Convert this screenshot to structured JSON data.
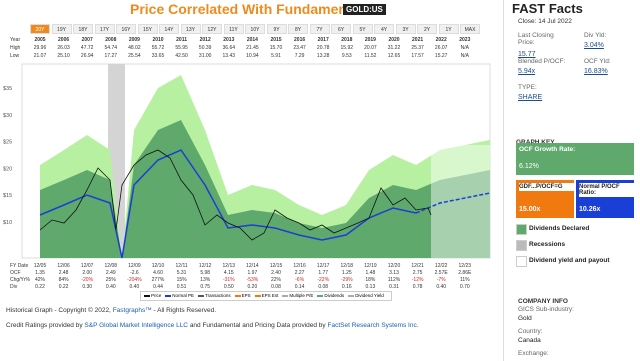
{
  "header": {
    "title": "Price Correlated With Fundamentals",
    "ticker": "GOLD:US"
  },
  "ranges": [
    "20Y",
    "19Y",
    "18Y",
    "17Y",
    "16Y",
    "15Y",
    "14Y",
    "13Y",
    "12Y",
    "11Y",
    "10Y",
    "9Y",
    "8Y",
    "7Y",
    "6Y",
    "5Y",
    "4Y",
    "3Y",
    "2Y",
    "1Y",
    "MAX"
  ],
  "table": {
    "row_labels": [
      "Year",
      "High",
      "Low"
    ],
    "years": [
      "2005",
      "2006",
      "2007",
      "2008",
      "2009",
      "2010",
      "2011",
      "2012",
      "2013",
      "2014",
      "2015",
      "2016",
      "2017",
      "2018",
      "2019",
      "2020",
      "2021",
      "2022",
      "2023"
    ],
    "high": [
      "29.96",
      "26.03",
      "47.72",
      "54.74",
      "48.02",
      "55.72",
      "55.95",
      "50.39",
      "36.64",
      "21.45",
      "15.70",
      "23.47",
      "20.78",
      "15.92",
      "20.07",
      "31.22",
      "25.37",
      "26.07",
      "N/A"
    ],
    "low": [
      "21.07",
      "25.10",
      "26.94",
      "17.27",
      "25.54",
      "33.65",
      "42.50",
      "31.00",
      "13.43",
      "10.94",
      "5.91",
      "7.29",
      "13.28",
      "9.53",
      "11.52",
      "12.65",
      "17.57",
      "15.27",
      "N/A"
    ]
  },
  "y_axis_labels": [
    "$35",
    "$30",
    "$25",
    "$20",
    "$15",
    "$10"
  ],
  "fundamentals": {
    "row_labels": [
      "FY Date",
      "OCF",
      "Chg/Yr%",
      "Div"
    ],
    "fy": [
      "12/05",
      "12/06",
      "12/07",
      "12/08",
      "12/09",
      "12/10",
      "12/11",
      "12/12",
      "12/13",
      "12/14",
      "12/15",
      "12/16",
      "12/17",
      "12/18",
      "12/19",
      "12/20",
      "12/21",
      "12/22",
      "12/23"
    ],
    "ocf": [
      "1.35",
      "2.48",
      "2.00",
      "2.49",
      "-2.6",
      "4.60",
      "5.31",
      "5.98",
      "4.15",
      "1.97",
      "2.40",
      "2.27",
      "1.77",
      "1.25",
      "1.48",
      "3.13",
      "2.75",
      "2.57E",
      "2.86E"
    ],
    "chg": [
      "42%",
      "84%",
      "-20%",
      "25%",
      "-204%",
      "277%",
      "15%",
      "13%",
      "-31%",
      "-53%",
      "22%",
      "-6%",
      "-22%",
      "-29%",
      "18%",
      "112%",
      "-12%",
      "-7%",
      "11%"
    ],
    "div": [
      "0.22",
      "0.22",
      "0.30",
      "0.40",
      "0.40",
      "0.44",
      "0.51",
      "0.75",
      "0.50",
      "0.20",
      "0.08",
      "0.14",
      "0.08",
      "0.16",
      "0.13",
      "0.31",
      "0.78",
      "0.40",
      "0.70"
    ]
  },
  "legend": [
    "Price",
    "Normal PE",
    "Transactions",
    "EPS",
    "EPS Est",
    "Multiple P/E",
    "Dividends",
    "Dividend Yield"
  ],
  "footer": {
    "copyright_start": "Historical Graph - Copyright © 2022,",
    "copyright_link": "Fastgraphs™",
    "copyright_end": "- All Rights Reserved.",
    "credits_start": "Credit Ratings provided by",
    "credits_link1": "S&P Global Market Intelligence LLC",
    "credits_mid": "and Fundamental and Pricing Data provided by",
    "credits_link2": "FactSet Research Systems Inc."
  },
  "facts": {
    "title": "FAST Facts",
    "close": "Close: 14 Jul 2022",
    "items": [
      {
        "label": "Last Closing Price:",
        "value": "15.77"
      },
      {
        "label": "Div Yld:",
        "value": "3.04%"
      },
      {
        "label": "Blended P/OCF:",
        "value": "5.94x"
      },
      {
        "label": "OCF Yld:",
        "value": "16.83%"
      },
      {
        "label": "TYPE:",
        "value": "SHARE"
      }
    ],
    "graph_key": "GRAPH KEY",
    "growth_label": "OCF Growth Rate:",
    "growth_value": "6.12%",
    "gdf_label": "GDF...P/OCF=G",
    "gdf_value": "15.00x",
    "normal_label": "Normal P/OCF Ratio:",
    "normal_value": "10.26x",
    "keys": [
      "Dividends Declared",
      "Recessions",
      "Dividend yield and payout"
    ],
    "company_info": "COMPANY INFO",
    "gics_label": "GICS Sub-industry:",
    "gics_value": "Gold",
    "country_label": "Country:",
    "country_value": "Canada",
    "exchange_label": "Exchange:"
  }
}
